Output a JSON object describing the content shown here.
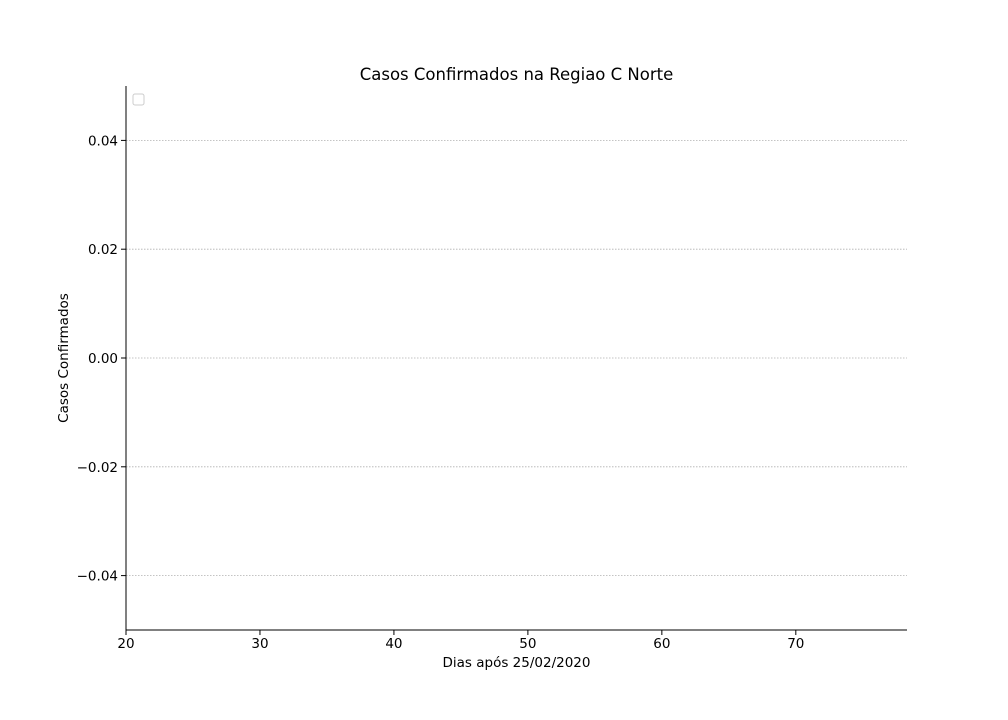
{
  "chart_data": {
    "type": "line",
    "title": "Casos Confirmados na Regiao C Norte",
    "xlabel": "Dias após 25/02/2020",
    "ylabel": "Casos Confirmados",
    "xlim": [
      20,
      78.3
    ],
    "ylim": [
      -0.05,
      0.05
    ],
    "x_ticks": [
      20,
      30,
      40,
      50,
      60,
      70
    ],
    "x_tick_labels": [
      "20",
      "30",
      "40",
      "50",
      "60",
      "70"
    ],
    "y_ticks": [
      0.04,
      0.02,
      0.0,
      -0.02,
      -0.04
    ],
    "y_tick_labels": [
      "0.04",
      "0.02",
      "0.00",
      "−0.02",
      "−0.04"
    ],
    "grid": "y-dotted",
    "legend": "upper-left",
    "legend_entries": [],
    "series": [],
    "colors": {
      "axis": "#000000",
      "grid": "#b0b0b0",
      "legend_border": "#cccccc"
    }
  }
}
